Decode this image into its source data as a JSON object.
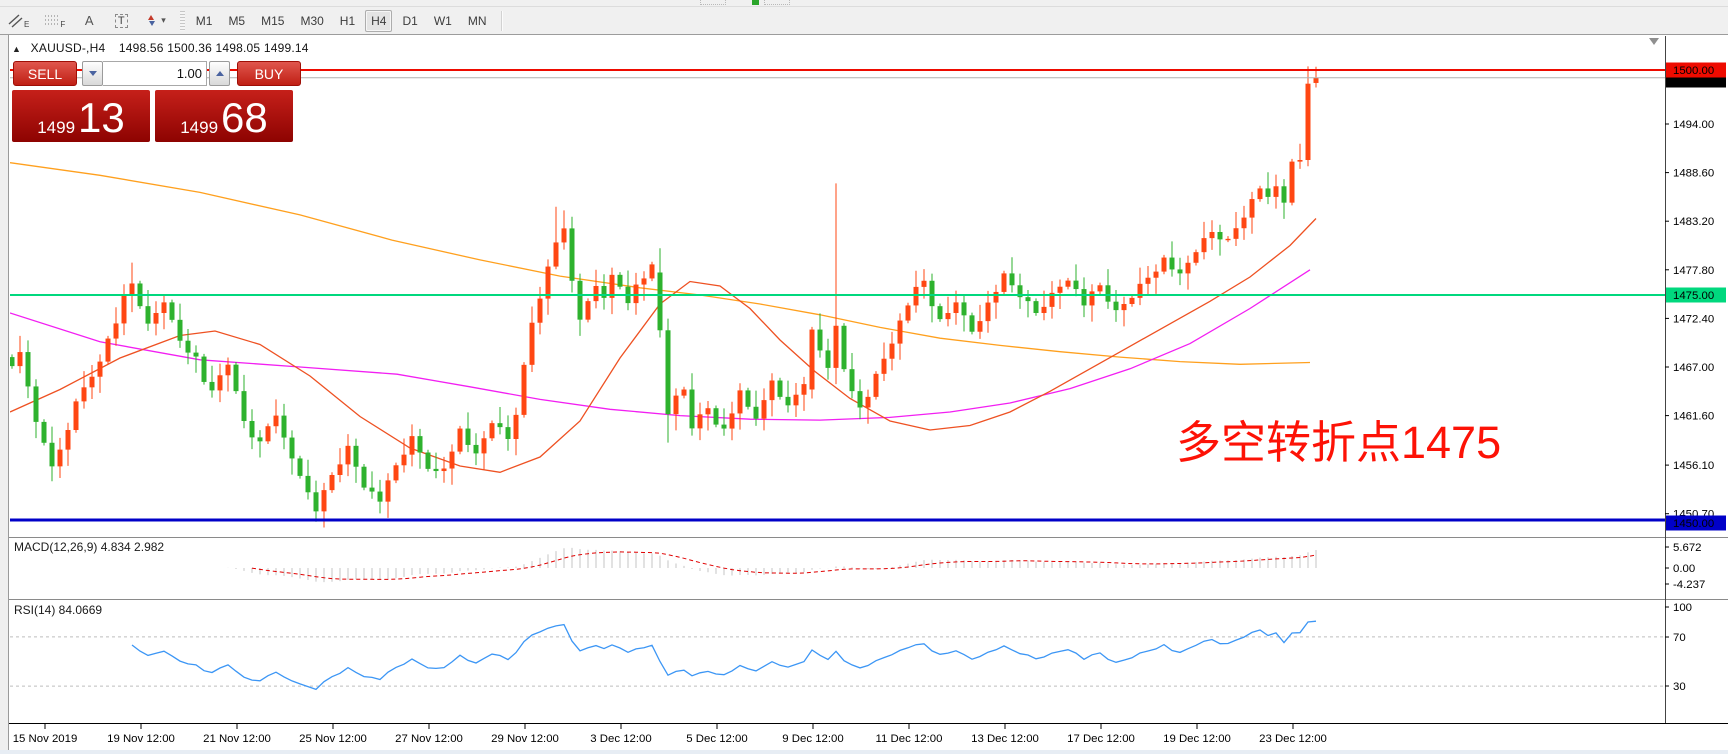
{
  "toolbar": {
    "icons": [
      {
        "name": "channel-tool",
        "sub": "E"
      },
      {
        "name": "fibonacci-tool",
        "sub": "F"
      },
      {
        "name": "text-label-tool",
        "glyph": "A"
      },
      {
        "name": "text-tool",
        "glyph": "T"
      },
      {
        "name": "arrows-tool",
        "caret": "▾"
      }
    ],
    "timeframes": [
      {
        "label": "M1"
      },
      {
        "label": "M5"
      },
      {
        "label": "M15"
      },
      {
        "label": "M30"
      },
      {
        "label": "H1"
      },
      {
        "label": "H4"
      },
      {
        "label": "D1"
      },
      {
        "label": "W1"
      },
      {
        "label": "MN"
      }
    ],
    "active_timeframe": "H4"
  },
  "chart_header": {
    "collapse_glyph": "▲",
    "symbol": "XAUUSD-,H4",
    "ohlc": "1498.56 1500.36 1498.05 1499.14"
  },
  "trade_panel": {
    "sell_label": "SELL",
    "buy_label": "BUY",
    "volume": "1.00",
    "sell_price_main": "1499",
    "sell_price_pips": "13",
    "buy_price_main": "1499",
    "buy_price_pips": "68"
  },
  "annotation": {
    "text": "多空转折点1475",
    "color": "#fd1206"
  },
  "macd_panel": {
    "label": "MACD(12,26,9) 4.834 2.982",
    "axis_labels": [
      "5.672",
      "0.00",
      "-4.237"
    ]
  },
  "rsi_panel": {
    "label": "RSI(14) 84.0669",
    "axis_labels": [
      "100",
      "70",
      "30"
    ]
  },
  "y_axis": {
    "tick_labels": [
      "1494.00",
      "1488.60",
      "1483.20",
      "1477.80",
      "1472.40",
      "1467.00",
      "1461.60",
      "1456.10",
      "1450.70"
    ],
    "badges": [
      {
        "text": "1500.00",
        "bg": "#ee0b00",
        "fg": "#ffffff"
      },
      {
        "text": "1499.14",
        "bg": "#000000",
        "fg": "#ffffff"
      },
      {
        "text": "1475.00",
        "bg": "#00d87e",
        "fg": "#000000"
      },
      {
        "text": "1450.00",
        "bg": "#0000c8",
        "fg": "#ffffff"
      }
    ]
  },
  "x_axis": {
    "labels": [
      "15 Nov 2019",
      "19 Nov 12:00",
      "21 Nov 12:00",
      "25 Nov 12:00",
      "27 Nov 12:00",
      "29 Nov 12:00",
      "3 Dec 12:00",
      "5 Dec 12:00",
      "9 Dec 12:00",
      "11 Dec 12:00",
      "13 Dec 12:00",
      "17 Dec 12:00",
      "19 Dec 12:00",
      "23 Dec 12:00"
    ]
  },
  "chart_data": {
    "type": "candlestick",
    "symbol": "XAUUSD-",
    "timeframe": "H4",
    "current_bar": {
      "open": 1498.56,
      "high": 1500.36,
      "low": 1498.05,
      "close": 1499.14
    },
    "bid": 1499.13,
    "ask": 1499.68,
    "last_price": 1499.14,
    "colors": {
      "up_candle": "#ff4713",
      "down_candle": "#2eb22e",
      "macd_hist": "#c4c4c4",
      "macd_signal": "#e00000",
      "rsi_line": "#3c96f5"
    },
    "horizontal_lines": [
      {
        "price": 1500.0,
        "color": "#ee0b00",
        "width": 2
      },
      {
        "price": 1475.0,
        "color": "#00d87e",
        "width": 2
      },
      {
        "price": 1450.0,
        "color": "#0000c8",
        "width": 3
      }
    ],
    "price_axis": {
      "ticks": [
        1494.0,
        1488.6,
        1483.2,
        1477.8,
        1472.4,
        1467.0,
        1461.6,
        1456.1,
        1450.7
      ],
      "badge_prices": [
        1500.0,
        1499.14,
        1475.0,
        1450.0
      ]
    },
    "candles": {
      "count": 164,
      "keypoints": [
        [
          0,
          1467.5
        ],
        [
          1,
          1468.5
        ],
        [
          2,
          1465
        ],
        [
          3,
          1460.5
        ],
        [
          4,
          1458.5
        ],
        [
          5,
          1456.2
        ],
        [
          6,
          1457.5
        ],
        [
          7,
          1460
        ],
        [
          8,
          1463.5
        ],
        [
          9,
          1464.5
        ],
        [
          10,
          1466
        ],
        [
          11,
          1468
        ],
        [
          12,
          1470
        ],
        [
          13,
          1472
        ],
        [
          14,
          1474.5
        ],
        [
          15,
          1476.2
        ],
        [
          16,
          1474
        ],
        [
          17,
          1471.5
        ],
        [
          18,
          1473
        ],
        [
          19,
          1474.5
        ],
        [
          20,
          1472
        ],
        [
          21,
          1470
        ],
        [
          22,
          1469
        ],
        [
          23,
          1468
        ],
        [
          24,
          1465.5
        ],
        [
          25,
          1464
        ],
        [
          26,
          1466
        ],
        [
          27,
          1467.5
        ],
        [
          28,
          1464
        ],
        [
          29,
          1461
        ],
        [
          30,
          1459.5
        ],
        [
          31,
          1458.5
        ],
        [
          32,
          1460.5
        ],
        [
          33,
          1462
        ],
        [
          34,
          1459
        ],
        [
          35,
          1457
        ],
        [
          36,
          1454.5
        ],
        [
          37,
          1453
        ],
        [
          38,
          1451.2
        ],
        [
          39,
          1453
        ],
        [
          40,
          1455
        ],
        [
          41,
          1456.5
        ],
        [
          42,
          1458
        ],
        [
          43,
          1456
        ],
        [
          44,
          1454
        ],
        [
          45,
          1453
        ],
        [
          46,
          1452.2
        ],
        [
          47,
          1454
        ],
        [
          48,
          1456
        ],
        [
          49,
          1457.5
        ],
        [
          50,
          1459
        ],
        [
          51,
          1457.5
        ],
        [
          52,
          1456
        ],
        [
          53,
          1455.2
        ],
        [
          54,
          1455.8
        ],
        [
          55,
          1458
        ],
        [
          56,
          1460
        ],
        [
          57,
          1458.5
        ],
        [
          58,
          1457
        ],
        [
          59,
          1459
        ],
        [
          60,
          1461
        ],
        [
          61,
          1460
        ],
        [
          62,
          1459
        ],
        [
          63,
          1462
        ],
        [
          64,
          1467
        ],
        [
          65,
          1472
        ],
        [
          66,
          1475
        ],
        [
          67,
          1478
        ],
        [
          68,
          1481
        ],
        [
          69,
          1482
        ],
        [
          70,
          1476.5
        ],
        [
          71,
          1472.5
        ],
        [
          72,
          1474
        ],
        [
          73,
          1476
        ],
        [
          74,
          1475
        ],
        [
          75,
          1477
        ],
        [
          76,
          1476
        ],
        [
          77,
          1474.5
        ],
        [
          78,
          1476
        ],
        [
          79,
          1477
        ],
        [
          80,
          1478
        ],
        [
          81,
          1471
        ],
        [
          82,
          1462
        ],
        [
          83,
          1463.5
        ],
        [
          84,
          1464.5
        ],
        [
          85,
          1460.5
        ],
        [
          86,
          1461.5
        ],
        [
          87,
          1462.5
        ],
        [
          88,
          1461
        ],
        [
          89,
          1460
        ],
        [
          90,
          1462
        ],
        [
          91,
          1464
        ],
        [
          92,
          1462.5
        ],
        [
          93,
          1461.5
        ],
        [
          94,
          1463
        ],
        [
          95,
          1465.5
        ],
        [
          96,
          1464
        ],
        [
          97,
          1462.5
        ],
        [
          98,
          1464
        ],
        [
          99,
          1465.5
        ],
        [
          100,
          1471
        ],
        [
          101,
          1469
        ],
        [
          102,
          1466.5
        ],
        [
          103,
          1471.5
        ],
        [
          104,
          1467
        ],
        [
          105,
          1464
        ],
        [
          106,
          1462.5
        ],
        [
          107,
          1464
        ],
        [
          108,
          1466
        ],
        [
          109,
          1468
        ],
        [
          110,
          1470
        ],
        [
          111,
          1472
        ],
        [
          112,
          1474
        ],
        [
          113,
          1475.5
        ],
        [
          114,
          1476.5
        ],
        [
          115,
          1474
        ],
        [
          116,
          1472
        ],
        [
          117,
          1473
        ],
        [
          118,
          1474.5
        ],
        [
          119,
          1472.5
        ],
        [
          120,
          1471
        ],
        [
          121,
          1472.5
        ],
        [
          122,
          1474
        ],
        [
          123,
          1475.5
        ],
        [
          124,
          1477
        ],
        [
          125,
          1476
        ],
        [
          126,
          1475
        ],
        [
          127,
          1474
        ],
        [
          128,
          1473
        ],
        [
          129,
          1474
        ],
        [
          130,
          1475
        ],
        [
          131,
          1476
        ],
        [
          132,
          1477
        ],
        [
          133,
          1475.5
        ],
        [
          134,
          1474
        ],
        [
          135,
          1475
        ],
        [
          136,
          1476
        ],
        [
          137,
          1474.5
        ],
        [
          138,
          1473
        ],
        [
          139,
          1474
        ],
        [
          140,
          1475
        ],
        [
          141,
          1476
        ],
        [
          142,
          1477
        ],
        [
          143,
          1478
        ],
        [
          144,
          1479
        ],
        [
          145,
          1478
        ],
        [
          146,
          1477
        ],
        [
          147,
          1478.5
        ],
        [
          148,
          1480
        ],
        [
          149,
          1481
        ],
        [
          150,
          1482
        ],
        [
          151,
          1481.5
        ],
        [
          152,
          1481
        ],
        [
          153,
          1482.5
        ],
        [
          154,
          1484
        ],
        [
          155,
          1485.5
        ],
        [
          156,
          1487
        ],
        [
          157,
          1485.5
        ],
        [
          158,
          1487
        ],
        [
          159,
          1485.5
        ],
        [
          160,
          1489.5
        ],
        [
          161,
          1490
        ],
        [
          162,
          1498.8
        ],
        [
          163,
          1499.14
        ]
      ],
      "overrides": {
        "5": {
          "l": 1454.3
        },
        "15": {
          "h": 1478.6
        },
        "38": {
          "l": 1449.8
        },
        "68": {
          "h": 1484.8
        },
        "69": {
          "h": 1484.4
        },
        "81": {
          "o": 1477.5
        },
        "82": {
          "l": 1458.6
        },
        "100": {
          "o": 1464.5,
          "l": 1463.5
        },
        "103": {
          "h": 1487.4
        },
        "162": {
          "o": 1490.0,
          "h": 1500.4,
          "l": 1489.3
        },
        "163": {
          "o": 1498.56,
          "h": 1500.36,
          "l": 1498.05,
          "c": 1499.14
        }
      }
    },
    "moving_averages": [
      {
        "name": "ma-slow-orange",
        "color": "#ffa01e",
        "points": [
          [
            10,
            1489.7
          ],
          [
            100,
            1488.3
          ],
          [
            200,
            1486.4
          ],
          [
            300,
            1483.9
          ],
          [
            392,
            1481.1
          ],
          [
            480,
            1478.9
          ],
          [
            560,
            1477.1
          ],
          [
            640,
            1475.8
          ],
          [
            700,
            1475
          ],
          [
            760,
            1474
          ],
          [
            820,
            1472.8
          ],
          [
            880,
            1471.4
          ],
          [
            940,
            1470.2
          ],
          [
            1000,
            1469.4
          ],
          [
            1060,
            1468.7
          ],
          [
            1120,
            1468.1
          ],
          [
            1180,
            1467.6
          ],
          [
            1240,
            1467.3
          ],
          [
            1310,
            1467.5
          ]
        ]
      },
      {
        "name": "ma-magenta",
        "color": "#f21ff2",
        "points": [
          [
            10,
            1473
          ],
          [
            100,
            1469.8
          ],
          [
            200,
            1467.8
          ],
          [
            300,
            1467
          ],
          [
            397,
            1466.2
          ],
          [
            470,
            1464.8
          ],
          [
            540,
            1463.4
          ],
          [
            610,
            1462.3
          ],
          [
            680,
            1461.6
          ],
          [
            750,
            1461.2
          ],
          [
            820,
            1461.1
          ],
          [
            890,
            1461.4
          ],
          [
            950,
            1462
          ],
          [
            1010,
            1463
          ],
          [
            1070,
            1464.6
          ],
          [
            1130,
            1466.8
          ],
          [
            1190,
            1469.6
          ],
          [
            1250,
            1473.5
          ],
          [
            1310,
            1477.8
          ]
        ]
      },
      {
        "name": "ma-red",
        "color": "#ee5122",
        "points": [
          [
            10,
            1462
          ],
          [
            60,
            1464.5
          ],
          [
            120,
            1468
          ],
          [
            180,
            1470.5
          ],
          [
            215,
            1471
          ],
          [
            260,
            1469.5
          ],
          [
            310,
            1466
          ],
          [
            360,
            1461.5
          ],
          [
            410,
            1458
          ],
          [
            460,
            1456
          ],
          [
            500,
            1455.3
          ],
          [
            540,
            1457
          ],
          [
            580,
            1461
          ],
          [
            620,
            1468
          ],
          [
            660,
            1474
          ],
          [
            690,
            1476.5
          ],
          [
            720,
            1476
          ],
          [
            750,
            1473.5
          ],
          [
            780,
            1470
          ],
          [
            815,
            1466.5
          ],
          [
            850,
            1463.5
          ],
          [
            890,
            1461
          ],
          [
            930,
            1460
          ],
          [
            970,
            1460.5
          ],
          [
            1010,
            1462
          ],
          [
            1050,
            1464.3
          ],
          [
            1090,
            1466.8
          ],
          [
            1130,
            1469.3
          ],
          [
            1170,
            1471.8
          ],
          [
            1210,
            1474.3
          ],
          [
            1250,
            1477
          ],
          [
            1290,
            1480.5
          ],
          [
            1316,
            1483.5
          ]
        ]
      }
    ],
    "macd": {
      "params": [
        12,
        26,
        9
      ],
      "main": 4.834,
      "signal": 2.982,
      "axis": [
        5.672,
        0.0,
        -4.237
      ]
    },
    "rsi": {
      "period": 14,
      "value": 84.0669,
      "levels": [
        70,
        30
      ],
      "range": [
        0,
        100
      ]
    },
    "time_axis": [
      "15 Nov 2019",
      "19 Nov 12:00",
      "21 Nov 12:00",
      "25 Nov 12:00",
      "27 Nov 12:00",
      "29 Nov 12:00",
      "3 Dec 12:00",
      "5 Dec 12:00",
      "9 Dec 12:00",
      "11 Dec 12:00",
      "13 Dec 12:00",
      "17 Dec 12:00",
      "19 Dec 12:00",
      "23 Dec 12:00"
    ]
  }
}
